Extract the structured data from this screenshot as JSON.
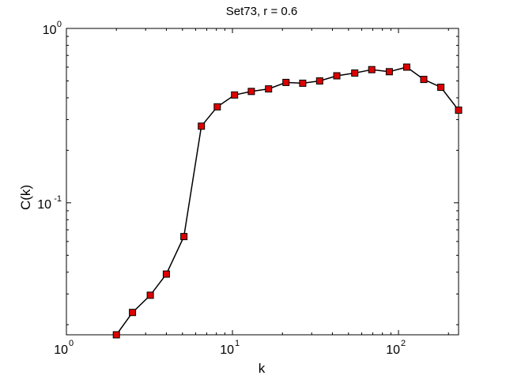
{
  "chart_data": {
    "type": "line",
    "title": "Set73, r = 0.6",
    "xlabel": "k",
    "ylabel": "C(k)",
    "xscale": "log",
    "yscale": "log",
    "xlim": [
      1,
      230
    ],
    "ylim": [
      0.0175,
      1
    ],
    "x_ticks": [
      {
        "base": "10",
        "exp": "0",
        "value": 1
      },
      {
        "base": "10",
        "exp": "1",
        "value": 10
      },
      {
        "base": "10",
        "exp": "2",
        "value": 100
      }
    ],
    "y_ticks": [
      {
        "base": "10",
        "exp": "-1",
        "value": 0.1
      },
      {
        "base": "10",
        "exp": "0",
        "value": 1
      }
    ],
    "grid": false,
    "series": [
      {
        "line_color": "#000000",
        "marker": "square",
        "marker_fill": "#dd0000",
        "marker_edge": "#000000",
        "x": [
          2,
          2.5,
          3.2,
          4,
          5.1,
          6.5,
          8.1,
          10.3,
          13,
          16.5,
          21,
          26.5,
          33.5,
          42.5,
          54.5,
          69,
          88,
          112,
          142,
          180,
          230
        ],
        "y": [
          0.0175,
          0.0235,
          0.0295,
          0.039,
          0.064,
          0.275,
          0.355,
          0.415,
          0.435,
          0.45,
          0.49,
          0.485,
          0.5,
          0.535,
          0.555,
          0.58,
          0.565,
          0.6,
          0.51,
          0.46,
          0.34
        ]
      }
    ]
  }
}
